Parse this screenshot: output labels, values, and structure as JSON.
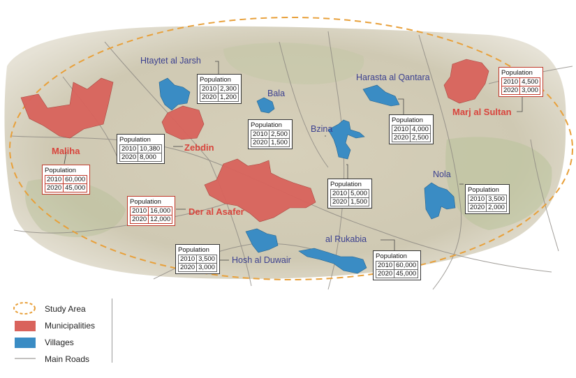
{
  "places": {
    "htaytet": "Htaytet al Jarsh",
    "bala": "Bala",
    "harasta": "Harasta al Qantara",
    "marj": "Marj al Sultan",
    "maliha": "Maliha",
    "zebdin": "Zebdin",
    "bzina": "Bzina",
    "nola": "Nola",
    "der_asafer": "Der al Asafer",
    "rukabia": "al Rukabia",
    "hosh": "Hosh al Duwair"
  },
  "population_header": "Population",
  "population": {
    "htaytet": {
      "y1": "2010",
      "v1": "2,300",
      "y2": "2020",
      "v2": "1,200"
    },
    "bala": {
      "y1": "2010",
      "v1": "2,500",
      "y2": "2020",
      "v2": "1,500"
    },
    "harasta": {
      "y1": "2010",
      "v1": "4,000",
      "y2": "2020",
      "v2": "2,500"
    },
    "marj": {
      "y1": "2010",
      "v1": "4,500",
      "y2": "2020",
      "v2": "3,000"
    },
    "zebdin": {
      "y1": "2010",
      "v1": "10,380",
      "y2": "2020",
      "v2": "8,000"
    },
    "maliha": {
      "y1": "2010",
      "v1": "60,000",
      "y2": "2020",
      "v2": "45,000"
    },
    "bzina": {
      "y1": "2010",
      "v1": "5,000",
      "y2": "2020",
      "v2": "1,500"
    },
    "nola": {
      "y1": "2010",
      "v1": "3,500",
      "y2": "2020",
      "v2": "2,000"
    },
    "der_asafer": {
      "y1": "2010",
      "v1": "16,000",
      "y2": "2020",
      "v2": "12,000"
    },
    "hosh": {
      "y1": "2010",
      "v1": "3,500",
      "y2": "2020",
      "v2": "3,000"
    },
    "rukabia": {
      "y1": "2010",
      "v1": "60,000",
      "y2": "2020",
      "v2": "45,000"
    }
  },
  "legend": {
    "study_area": "Study Area",
    "municipalities": "Municipalities",
    "villages": "Villages",
    "main_roads": "Main Roads"
  },
  "colors": {
    "municipality": "#d9635c",
    "village": "#3a8cc4",
    "study_area": "#e8a03a",
    "road": "#8a8680",
    "terrain": "#d8d2bf"
  }
}
